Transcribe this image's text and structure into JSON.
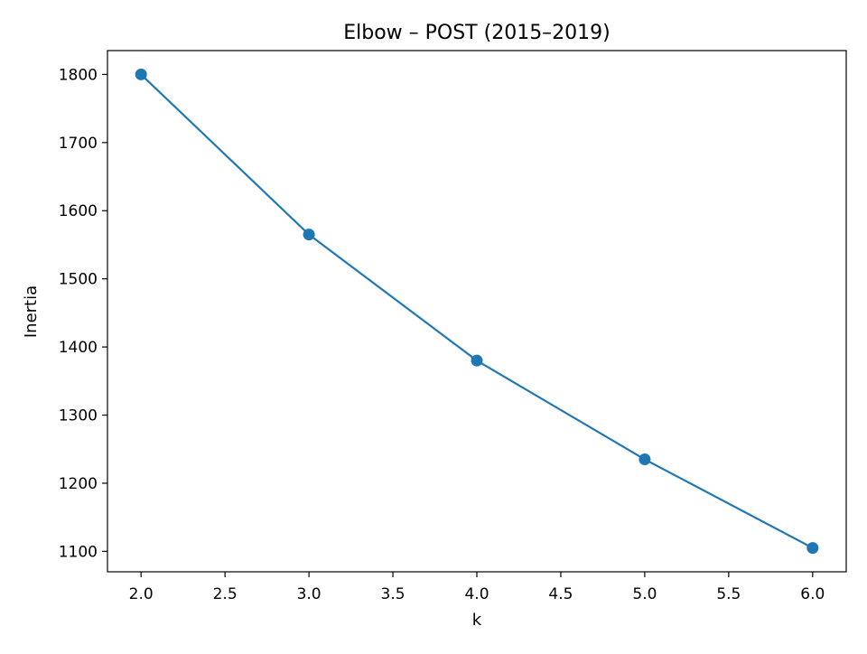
{
  "chart_data": {
    "type": "line",
    "title": "Elbow – POST (2015–2019)",
    "xlabel": "k",
    "ylabel": "Inertia",
    "xlim": [
      1.8,
      6.2
    ],
    "ylim": [
      1070,
      1835
    ],
    "x_ticks": [
      2.0,
      2.5,
      3.0,
      3.5,
      4.0,
      4.5,
      5.0,
      5.5,
      6.0
    ],
    "x_tick_labels": [
      "2.0",
      "2.5",
      "3.0",
      "3.5",
      "4.0",
      "4.5",
      "5.0",
      "5.5",
      "6.0"
    ],
    "y_ticks": [
      1100,
      1200,
      1300,
      1400,
      1500,
      1600,
      1700,
      1800
    ],
    "y_tick_labels": [
      "1100",
      "1200",
      "1300",
      "1400",
      "1500",
      "1600",
      "1700",
      "1800"
    ],
    "grid": false,
    "series": [
      {
        "x": [
          2,
          3,
          4,
          5,
          6
        ],
        "y": [
          1800,
          1565,
          1380,
          1235,
          1105
        ],
        "color": "#1f77b4",
        "marker": "circle"
      }
    ]
  }
}
